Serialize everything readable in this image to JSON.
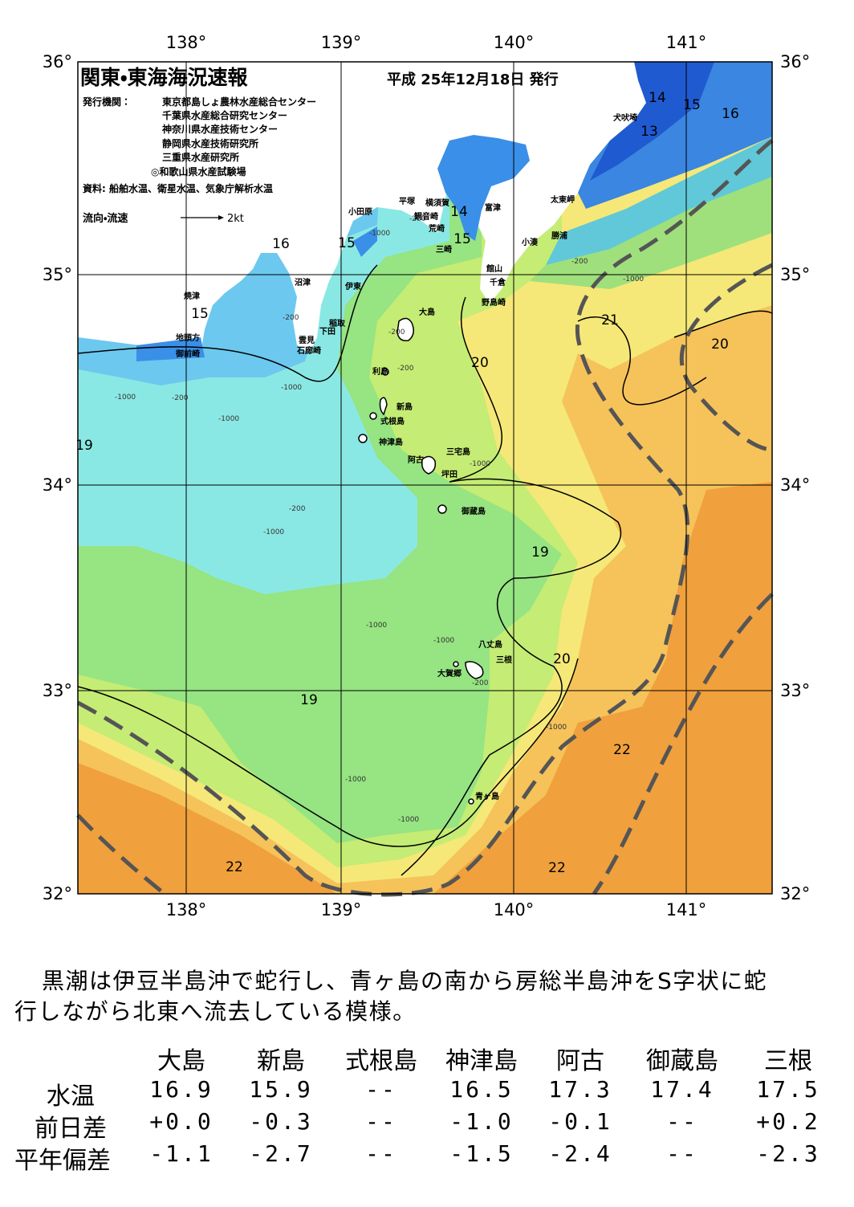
{
  "header": {
    "title": "関東・東海海況速報",
    "date": "平成 25年12月18日 発行",
    "issuer_label": "発行機関：",
    "issuers": [
      "東京都島しょ農林水産総合センター",
      "千葉県水産総合研究センター",
      "神奈川県水産技術センター",
      "静岡県水産技術研究所",
      "三重県水産研究所",
      "◎和歌山県水産試験場"
    ],
    "source": "資料: 船舶水温、衛星水温、気象庁解析水温",
    "flow_label": "流向・流速",
    "flow_scale": "2kt"
  },
  "map": {
    "lon_labels": [
      "138°",
      "139°",
      "140°",
      "141°"
    ],
    "lat_labels": [
      "36°",
      "35°",
      "34°",
      "33°",
      "32°"
    ],
    "places": [
      "犬吠埼",
      "太東岬",
      "勝浦",
      "小湊",
      "富津",
      "平塚",
      "横須賀",
      "観音崎",
      "荒崎",
      "三崎",
      "小田原",
      "館山",
      "千倉",
      "野島崎",
      "沼津",
      "伊東",
      "稲取",
      "下田",
      "雲見",
      "石廊崎",
      "焼津",
      "地頭方",
      "御前崎",
      "大島",
      "利島",
      "新島",
      "式根島",
      "神津島",
      "三宅島",
      "阿古",
      "坪田",
      "御蔵島",
      "八丈島",
      "三根",
      "大賀郷",
      "青ヶ島"
    ],
    "isotherms": [
      14,
      15,
      16,
      13,
      14,
      15,
      16,
      15,
      15,
      21,
      20,
      20,
      19,
      19,
      20,
      19,
      22,
      22,
      22
    ],
    "depths": [
      -200,
      -200,
      -200,
      -200,
      -200,
      -200,
      -200,
      -200,
      -1000,
      -1000,
      -1000,
      -1000,
      -1000,
      -1000,
      -1000,
      -1000,
      -1000,
      -1000,
      -1000,
      -1000
    ]
  },
  "summary": {
    "lines": [
      "黒潮は伊豆半島沖で蛇行し、青ヶ島の南から房総半島沖をS字状に蛇",
      "行しながら北東へ流去している模様。"
    ]
  },
  "table": {
    "columns": [
      "大島",
      "新島",
      "式根島",
      "神津島",
      "阿古",
      "御蔵島",
      "三根"
    ],
    "rows": [
      {
        "label": "水温",
        "cells": [
          "16.9",
          "15.9",
          "--",
          "16.5",
          "17.3",
          "17.4",
          "17.5"
        ]
      },
      {
        "label": "前日差",
        "cells": [
          "+0.0",
          "-0.3",
          "--",
          "-1.0",
          "-0.1",
          "--",
          "+0.2"
        ]
      },
      {
        "label": "平年偏差",
        "cells": [
          "-1.1",
          "-2.7",
          "--",
          "-1.5",
          "-2.4",
          "--",
          "-2.3"
        ]
      }
    ]
  }
}
